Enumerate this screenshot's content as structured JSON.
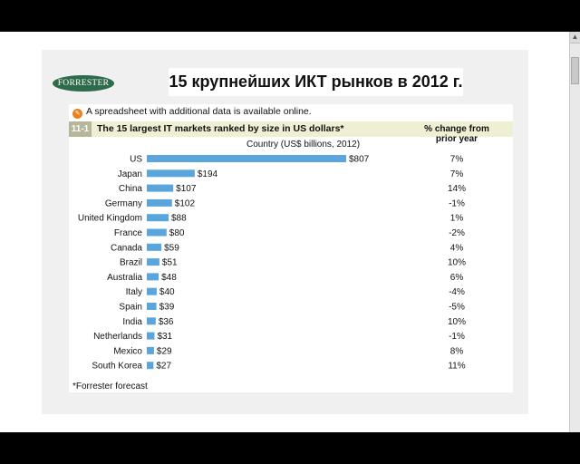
{
  "slide": {
    "logo_text": "FORRESTER",
    "title": "15 крупнейших ИКТ рынков в 2012 г.",
    "spreadsheet_note": "A spreadsheet with additional data is available online.",
    "figure_number": "11-1",
    "figure_title": "The 15 largest IT markets ranked by size in US dollars*",
    "pct_header": "% change from prior year",
    "country_header": "Country (US$ billions, 2012)",
    "footnote": "*Forrester forecast"
  },
  "colors": {
    "bar": "#5aa5dc",
    "band": "#efefd3",
    "fig_number_bg": "#b5b69a",
    "logo_bg": "#2e6b4a"
  },
  "chart_data": {
    "type": "bar",
    "orientation": "horizontal",
    "categories": [
      "US",
      "Japan",
      "China",
      "Germany",
      "United Kingdom",
      "France",
      "Canada",
      "Brazil",
      "Australia",
      "Italy",
      "Spain",
      "India",
      "Netherlands",
      "Mexico",
      "South Korea"
    ],
    "series": [
      {
        "values": [
          807,
          194,
          107,
          102,
          88,
          80,
          59,
          51,
          48,
          40,
          39,
          36,
          31,
          29,
          27
        ]
      }
    ],
    "value_labels": [
      "$807",
      "$194",
      "$107",
      "$102",
      "$88",
      "$80",
      "$59",
      "$51",
      "$48",
      "$40",
      "$39",
      "$36",
      "$31",
      "$29",
      "$27"
    ],
    "pct_change": [
      "7%",
      "7%",
      "14%",
      "-1%",
      "1%",
      "-2%",
      "4%",
      "10%",
      "6%",
      "-4%",
      "-5%",
      "10%",
      "-1%",
      "8%",
      "11%"
    ],
    "title": "The 15 largest IT markets ranked by size in US dollars*",
    "xlabel": "Country (US$ billions, 2012)",
    "ylabel": "",
    "xlim": [
      0,
      807
    ]
  }
}
